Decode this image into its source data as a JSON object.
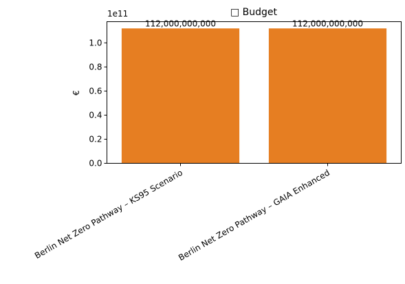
{
  "chart_data": {
    "type": "bar",
    "title": "□ Budget",
    "xlabel": "",
    "ylabel": "€",
    "offset_label": "1e11",
    "categories": [
      "Berlin Net Zero Pathway – KS95 Scenario",
      "Berlin Net Zero Pathway – GAIA Enhanced"
    ],
    "values": [
      112000000000,
      112000000000
    ],
    "data_labels": [
      "112,000,000,000",
      "112,000,000,000"
    ],
    "ylim": [
      0,
      117600000000
    ],
    "yticks": [
      0,
      20000000000,
      40000000000,
      60000000000,
      80000000000,
      100000000000
    ],
    "ytick_labels": [
      "0.0",
      "0.2",
      "0.4",
      "0.6",
      "0.8",
      "1.0"
    ],
    "bar_color": "#e67e22",
    "grid": false,
    "legend": "none"
  }
}
